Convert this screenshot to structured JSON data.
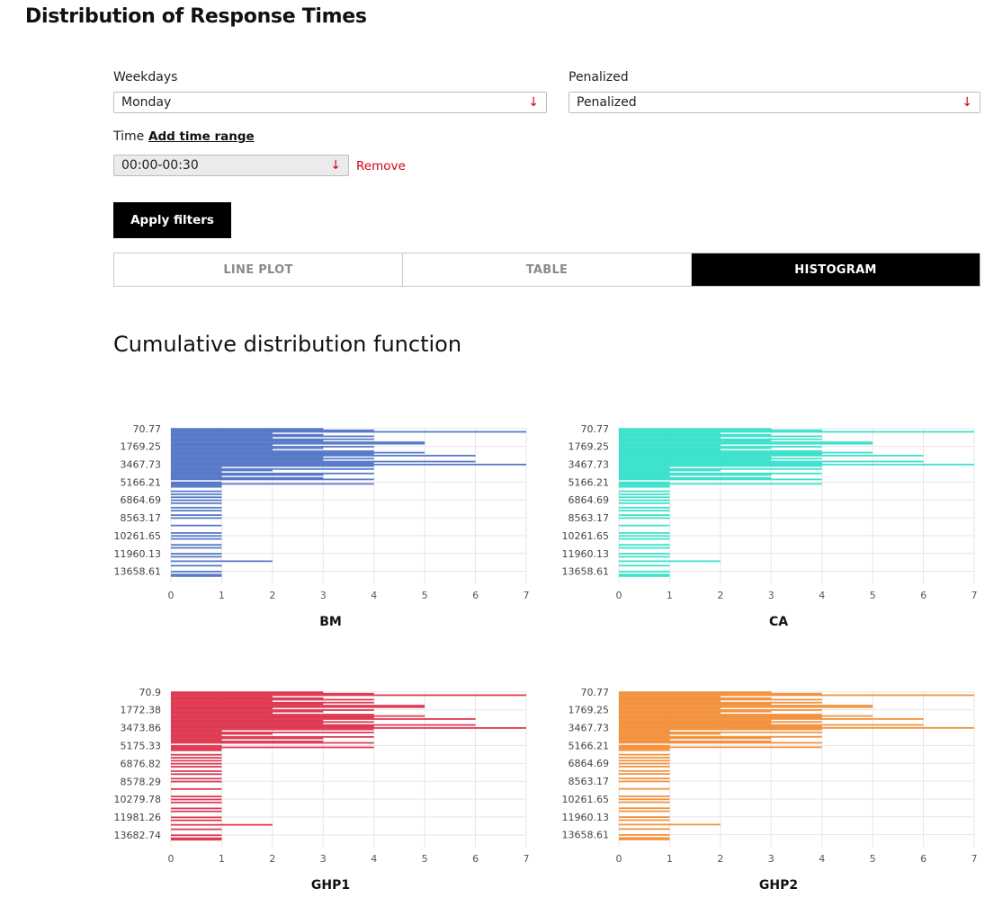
{
  "header": {
    "title": "Distribution of Response Times"
  },
  "filters": {
    "weekdays": {
      "label": "Weekdays",
      "value": "Monday"
    },
    "penalized": {
      "label": "Penalized",
      "value": "Penalized"
    },
    "time": {
      "label": "Time",
      "add_range": "Add time range",
      "value": "00:00-00:30",
      "remove": "Remove"
    },
    "apply_label": "Apply filters"
  },
  "icons": {
    "select_arrow": "arrow-down-icon",
    "arrow_glyph": "↓"
  },
  "tabs": [
    {
      "label": "LINE PLOT",
      "active": false
    },
    {
      "label": "TABLE",
      "active": false
    },
    {
      "label": "HISTOGRAM",
      "active": true
    }
  ],
  "section_title": "Cumulative distribution function",
  "chart_data": [
    {
      "type": "bar",
      "title": "BM",
      "color": "#4a6fc4",
      "orientation": "horizontal",
      "xlim": [
        0,
        7
      ],
      "x_ticks": [
        "0",
        "1",
        "2",
        "3",
        "4",
        "5",
        "6",
        "7"
      ],
      "y_ticks": [
        "70.77",
        "1769.25",
        "3467.73",
        "5166.21",
        "6864.69",
        "8563.17",
        "10261.65",
        "11960.13",
        "13658.61"
      ],
      "ylim": [
        0,
        14800
      ],
      "bins": [
        [
          70.77,
          3
        ],
        [
          212.3,
          4
        ],
        [
          353.9,
          7
        ],
        [
          495.4,
          2
        ],
        [
          637,
          3
        ],
        [
          778.5,
          4
        ],
        [
          920,
          2
        ],
        [
          1061.6,
          4
        ],
        [
          1203.1,
          3
        ],
        [
          1344.7,
          5
        ],
        [
          1486.2,
          5
        ],
        [
          1627.7,
          2
        ],
        [
          1769.25,
          4
        ],
        [
          1910.8,
          3
        ],
        [
          2052.3,
          2
        ],
        [
          2193.9,
          4
        ],
        [
          2335.4,
          5
        ],
        [
          2476.9,
          4
        ],
        [
          2618.5,
          6
        ],
        [
          2760,
          3
        ],
        [
          2901.6,
          4
        ],
        [
          3043.1,
          3
        ],
        [
          3184.6,
          6
        ],
        [
          3326.2,
          4
        ],
        [
          3467.73,
          7
        ],
        [
          3609.3,
          4
        ],
        [
          3750.8,
          1
        ],
        [
          3892.4,
          4
        ],
        [
          4033.9,
          2
        ],
        [
          4175.4,
          1
        ],
        [
          4317,
          4
        ],
        [
          4458.5,
          3
        ],
        [
          4600,
          1
        ],
        [
          4741.6,
          3
        ],
        [
          4883.1,
          4
        ],
        [
          5166.21,
          1
        ],
        [
          5307.7,
          4
        ],
        [
          5449.3,
          1
        ],
        [
          5590.8,
          1
        ],
        [
          6015.4,
          1
        ],
        [
          6298.5,
          1
        ],
        [
          6581.6,
          1
        ],
        [
          6864.69,
          1
        ],
        [
          7147.8,
          1
        ],
        [
          7572.3,
          1
        ],
        [
          7855.4,
          1
        ],
        [
          8280,
          1
        ],
        [
          8563.17,
          1
        ],
        [
          9270.9,
          1
        ],
        [
          9979,
          1
        ],
        [
          10261.65,
          1
        ],
        [
          10544.7,
          1
        ],
        [
          11111,
          1
        ],
        [
          11394,
          1
        ],
        [
          11960.13,
          1
        ],
        [
          12243.2,
          1
        ],
        [
          12667.8,
          2
        ],
        [
          13092.4,
          1
        ],
        [
          13658.61,
          1
        ],
        [
          13941.7,
          1
        ],
        [
          14083.2,
          1
        ]
      ]
    },
    {
      "type": "bar",
      "title": "CA",
      "color": "#2ee0c8",
      "orientation": "horizontal",
      "xlim": [
        0,
        7
      ],
      "x_ticks": [
        "0",
        "1",
        "2",
        "3",
        "4",
        "5",
        "6",
        "7"
      ],
      "y_ticks": [
        "70.77",
        "1769.25",
        "3467.73",
        "5166.21",
        "6864.69",
        "8563.17",
        "10261.65",
        "11960.13",
        "13658.61"
      ],
      "ylim": [
        0,
        14800
      ],
      "bins": [
        [
          70.77,
          3
        ],
        [
          212.3,
          4
        ],
        [
          353.9,
          7
        ],
        [
          495.4,
          2
        ],
        [
          637,
          3
        ],
        [
          778.5,
          4
        ],
        [
          920,
          2
        ],
        [
          1061.6,
          4
        ],
        [
          1203.1,
          3
        ],
        [
          1344.7,
          5
        ],
        [
          1486.2,
          5
        ],
        [
          1627.7,
          2
        ],
        [
          1769.25,
          4
        ],
        [
          1910.8,
          3
        ],
        [
          2052.3,
          2
        ],
        [
          2193.9,
          4
        ],
        [
          2335.4,
          5
        ],
        [
          2476.9,
          4
        ],
        [
          2618.5,
          6
        ],
        [
          2760,
          3
        ],
        [
          2901.6,
          4
        ],
        [
          3043.1,
          3
        ],
        [
          3184.6,
          6
        ],
        [
          3326.2,
          4
        ],
        [
          3467.73,
          7
        ],
        [
          3609.3,
          4
        ],
        [
          3750.8,
          1
        ],
        [
          3892.4,
          4
        ],
        [
          4033.9,
          2
        ],
        [
          4175.4,
          1
        ],
        [
          4317,
          4
        ],
        [
          4458.5,
          3
        ],
        [
          4600,
          1
        ],
        [
          4741.6,
          3
        ],
        [
          4883.1,
          4
        ],
        [
          5166.21,
          1
        ],
        [
          5307.7,
          4
        ],
        [
          5449.3,
          1
        ],
        [
          5590.8,
          1
        ],
        [
          6015.4,
          1
        ],
        [
          6298.5,
          1
        ],
        [
          6581.6,
          1
        ],
        [
          6864.69,
          1
        ],
        [
          7147.8,
          1
        ],
        [
          7572.3,
          1
        ],
        [
          7855.4,
          1
        ],
        [
          8280,
          1
        ],
        [
          8563.17,
          1
        ],
        [
          9270.9,
          1
        ],
        [
          9979,
          1
        ],
        [
          10261.65,
          1
        ],
        [
          10544.7,
          1
        ],
        [
          11111,
          1
        ],
        [
          11394,
          1
        ],
        [
          11960.13,
          1
        ],
        [
          12243.2,
          1
        ],
        [
          12667.8,
          2
        ],
        [
          13092.4,
          1
        ],
        [
          13658.61,
          1
        ],
        [
          13941.7,
          1
        ],
        [
          14083.2,
          1
        ]
      ]
    },
    {
      "type": "bar",
      "title": "GHP1",
      "color": "#dc2a45",
      "orientation": "horizontal",
      "xlim": [
        0,
        7
      ],
      "x_ticks": [
        "0",
        "1",
        "2",
        "3",
        "4",
        "5",
        "6",
        "7"
      ],
      "y_ticks": [
        "70.9",
        "1772.38",
        "3473.86",
        "5175.33",
        "6876.82",
        "8578.29",
        "10279.78",
        "11981.26",
        "13682.74"
      ],
      "ylim": [
        0,
        14800
      ],
      "bins": [
        [
          70.9,
          3
        ],
        [
          212.7,
          4
        ],
        [
          354.5,
          7
        ],
        [
          496.3,
          2
        ],
        [
          638.1,
          3
        ],
        [
          779.8,
          4
        ],
        [
          921.6,
          2
        ],
        [
          1063.4,
          4
        ],
        [
          1205.2,
          3
        ],
        [
          1347,
          5
        ],
        [
          1488.8,
          5
        ],
        [
          1630.6,
          2
        ],
        [
          1772.38,
          4
        ],
        [
          1914.2,
          3
        ],
        [
          2056,
          2
        ],
        [
          2197.8,
          4
        ],
        [
          2339.6,
          5
        ],
        [
          2481.4,
          4
        ],
        [
          2623.2,
          6
        ],
        [
          2765,
          3
        ],
        [
          2906.8,
          4
        ],
        [
          3048.6,
          3
        ],
        [
          3190.4,
          6
        ],
        [
          3332,
          4
        ],
        [
          3473.86,
          7
        ],
        [
          3615.6,
          4
        ],
        [
          3757.4,
          1
        ],
        [
          3899.2,
          4
        ],
        [
          4041,
          2
        ],
        [
          4182.8,
          1
        ],
        [
          4324.6,
          4
        ],
        [
          4466.4,
          3
        ],
        [
          4608.2,
          1
        ],
        [
          4750,
          3
        ],
        [
          4891.8,
          4
        ],
        [
          5175.33,
          1
        ],
        [
          5317.1,
          4
        ],
        [
          5458.9,
          1
        ],
        [
          5600.7,
          1
        ],
        [
          6026.1,
          1
        ],
        [
          6309.7,
          1
        ],
        [
          6593.3,
          1
        ],
        [
          6876.82,
          1
        ],
        [
          7160.4,
          1
        ],
        [
          7585.8,
          1
        ],
        [
          7869.4,
          1
        ],
        [
          8294.7,
          1
        ],
        [
          8578.29,
          1
        ],
        [
          9287.5,
          1
        ],
        [
          9996.2,
          1
        ],
        [
          10279.78,
          1
        ],
        [
          10563.4,
          1
        ],
        [
          11130.5,
          1
        ],
        [
          11414.1,
          1
        ],
        [
          11981.26,
          1
        ],
        [
          12264.8,
          1
        ],
        [
          12690.2,
          2
        ],
        [
          13115.6,
          1
        ],
        [
          13682.74,
          1
        ],
        [
          13966.3,
          1
        ],
        [
          14108.1,
          1
        ]
      ]
    },
    {
      "type": "bar",
      "title": "GHP2",
      "color": "#f28a30",
      "orientation": "horizontal",
      "xlim": [
        0,
        7
      ],
      "x_ticks": [
        "0",
        "1",
        "2",
        "3",
        "4",
        "5",
        "6",
        "7"
      ],
      "y_ticks": [
        "70.77",
        "1769.25",
        "3467.73",
        "5166.21",
        "6864.69",
        "8563.17",
        "10261.65",
        "11960.13",
        "13658.61"
      ],
      "ylim": [
        0,
        14800
      ],
      "bins": [
        [
          70.77,
          3
        ],
        [
          212.3,
          4
        ],
        [
          353.9,
          7
        ],
        [
          495.4,
          2
        ],
        [
          637,
          3
        ],
        [
          778.5,
          4
        ],
        [
          920,
          2
        ],
        [
          1061.6,
          4
        ],
        [
          1203.1,
          3
        ],
        [
          1344.7,
          5
        ],
        [
          1486.2,
          5
        ],
        [
          1627.7,
          2
        ],
        [
          1769.25,
          4
        ],
        [
          1910.8,
          3
        ],
        [
          2052.3,
          2
        ],
        [
          2193.9,
          4
        ],
        [
          2335.4,
          5
        ],
        [
          2476.9,
          4
        ],
        [
          2618.5,
          6
        ],
        [
          2760,
          3
        ],
        [
          2901.6,
          4
        ],
        [
          3043.1,
          3
        ],
        [
          3184.6,
          6
        ],
        [
          3326.2,
          4
        ],
        [
          3467.73,
          7
        ],
        [
          3609.3,
          4
        ],
        [
          3750.8,
          1
        ],
        [
          3892.4,
          4
        ],
        [
          4033.9,
          2
        ],
        [
          4175.4,
          1
        ],
        [
          4317,
          4
        ],
        [
          4458.5,
          3
        ],
        [
          4600,
          1
        ],
        [
          4741.6,
          3
        ],
        [
          4883.1,
          4
        ],
        [
          5166.21,
          1
        ],
        [
          5307.7,
          4
        ],
        [
          5449.3,
          1
        ],
        [
          5590.8,
          1
        ],
        [
          6015.4,
          1
        ],
        [
          6298.5,
          1
        ],
        [
          6581.6,
          1
        ],
        [
          6864.69,
          1
        ],
        [
          7147.8,
          1
        ],
        [
          7572.3,
          1
        ],
        [
          7855.4,
          1
        ],
        [
          8280,
          1
        ],
        [
          8563.17,
          1
        ],
        [
          9270.9,
          1
        ],
        [
          9979,
          1
        ],
        [
          10261.65,
          1
        ],
        [
          10544.7,
          1
        ],
        [
          11111,
          1
        ],
        [
          11394,
          1
        ],
        [
          11960.13,
          1
        ],
        [
          12243.2,
          1
        ],
        [
          12667.8,
          2
        ],
        [
          13092.4,
          1
        ],
        [
          13658.61,
          1
        ],
        [
          13941.7,
          1
        ],
        [
          14083.2,
          1
        ]
      ]
    }
  ]
}
